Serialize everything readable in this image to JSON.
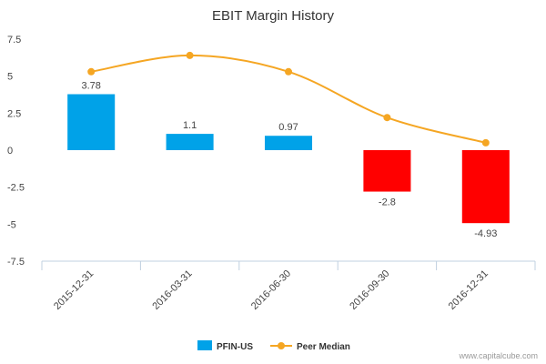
{
  "chart_data": {
    "type": "bar",
    "title": "EBIT Margin History",
    "xlabel": "",
    "ylabel": "",
    "categories": [
      "2015-12-31",
      "2016-03-31",
      "2016-06-30",
      "2016-09-30",
      "2016-12-31"
    ],
    "series": [
      {
        "name": "PFIN-US",
        "type": "bar",
        "values": [
          3.78,
          1.1,
          0.97,
          -2.8,
          -4.93
        ],
        "data_labels": [
          "3.78",
          "1.1",
          "0.97",
          "-2.8",
          "-4.93"
        ],
        "positive_color": "#00a2e8",
        "negative_color": "#ff0000"
      },
      {
        "name": "Peer Median",
        "type": "line",
        "smooth": true,
        "values": [
          5.3,
          6.4,
          5.3,
          2.2,
          0.5
        ],
        "color": "#f5a623"
      }
    ],
    "ylim": [
      -7.5,
      7.5
    ],
    "yticks": [
      7.5,
      5,
      2.5,
      0,
      -2.5,
      -5,
      -7.5
    ],
    "ytick_labels": [
      "7.5",
      "5",
      "2.5",
      "0",
      "-2.5",
      "-5",
      "-7.5"
    ],
    "grid": false,
    "legend_position": "bottom-center"
  },
  "credit": "www.capitalcube.com"
}
